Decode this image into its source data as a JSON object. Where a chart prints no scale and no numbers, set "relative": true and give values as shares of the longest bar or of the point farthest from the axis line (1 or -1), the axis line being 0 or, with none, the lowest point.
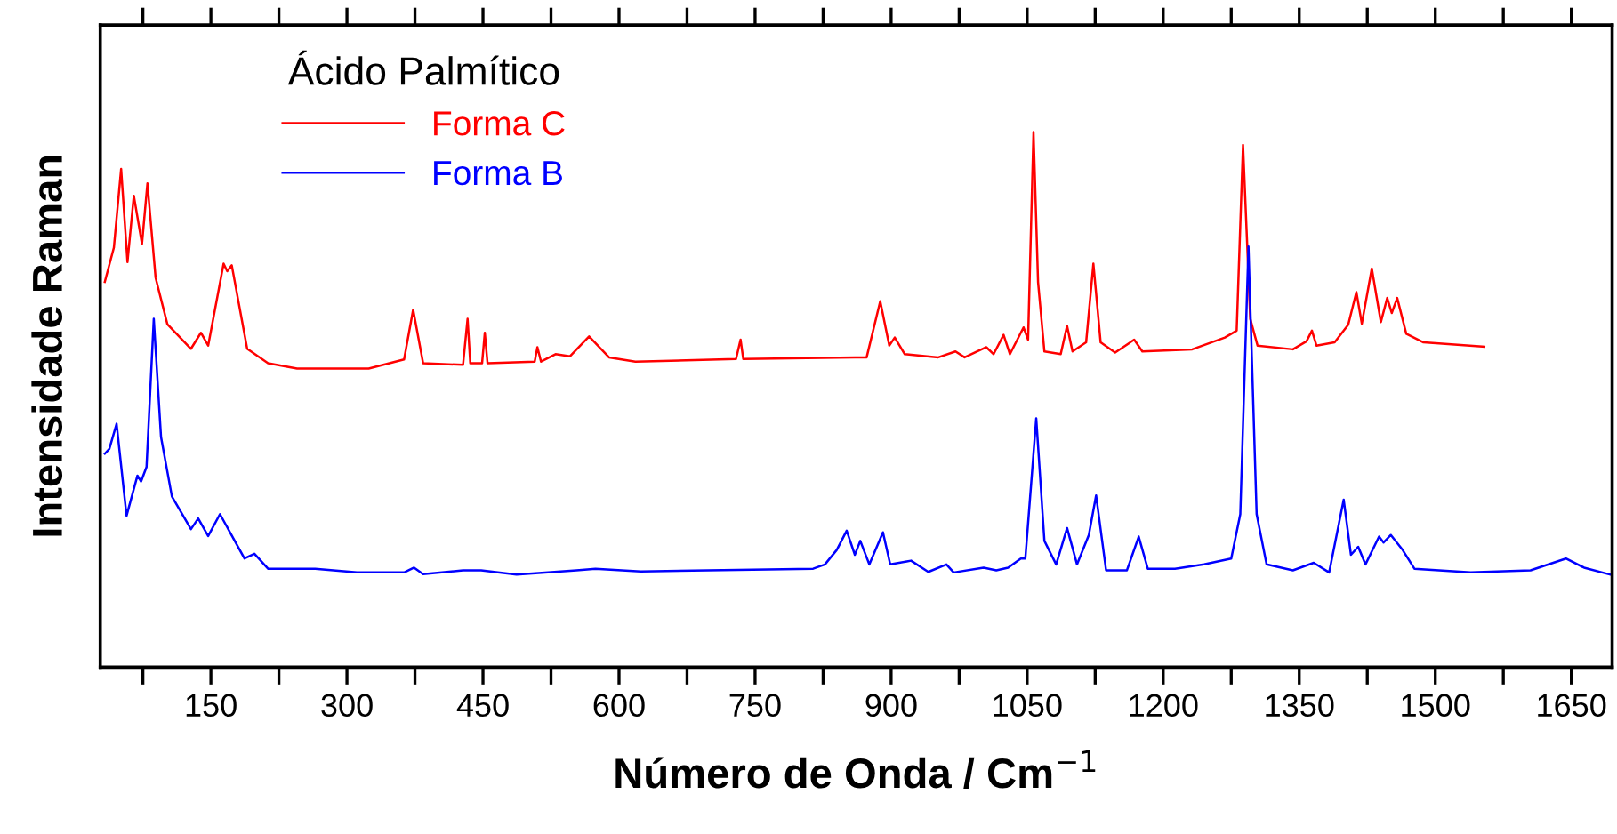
{
  "chart_data": {
    "type": "line",
    "relative": true,
    "legend_title": "Ácido Palmítico",
    "legend": "top left",
    "xlabel": "Número de Onda / Cm$^{−1}$",
    "ylabel": "Intensidade Raman",
    "xlim": [
      28,
      1695
    ],
    "xticks": [
      {
        "value": 75,
        "label": null
      },
      150,
      {
        "value": 225,
        "label": null
      },
      300,
      {
        "value": 375,
        "label": null
      },
      450,
      {
        "value": 525,
        "label": null
      },
      600,
      {
        "value": 675,
        "label": null
      },
      750,
      {
        "value": 825,
        "label": null
      },
      900,
      {
        "value": 975,
        "label": null
      },
      1050,
      {
        "value": 1125,
        "label": null
      },
      1200,
      {
        "value": 1275,
        "label": null
      },
      1350,
      {
        "value": 1425,
        "label": null
      },
      1500,
      {
        "value": 1575,
        "label": null
      },
      1650
    ],
    "grid": false,
    "marker": "none",
    "line_style": "solid",
    "series": [
      {
        "name": "Forma C",
        "color": "#ff0000",
        "x": [
          33,
          43,
          51,
          58,
          65,
          74,
          80,
          89,
          102,
          128,
          139,
          147,
          164,
          168,
          173,
          190,
          213,
          245,
          324,
          363,
          373,
          384,
          428,
          433,
          436,
          449,
          452,
          455,
          507,
          510,
          514,
          530,
          546,
          567,
          589,
          618,
          729,
          734,
          737,
          860,
          873,
          888,
          898,
          904,
          915,
          952,
          971,
          981,
          1005,
          1013,
          1024,
          1031,
          1046,
          1051,
          1057,
          1062,
          1069,
          1087,
          1094,
          1100,
          1115,
          1123,
          1131,
          1147,
          1168,
          1177,
          1232,
          1268,
          1281,
          1288,
          1296,
          1304,
          1343,
          1358,
          1364,
          1369,
          1389,
          1404,
          1413,
          1419,
          1430,
          1440,
          1447,
          1452,
          1458,
          1468,
          1487,
          1554
        ],
        "values": [
          0.72,
          0.784,
          0.931,
          0.757,
          0.881,
          0.791,
          0.904,
          0.728,
          0.641,
          0.595,
          0.625,
          0.601,
          0.754,
          0.74,
          0.751,
          0.595,
          0.568,
          0.558,
          0.558,
          0.575,
          0.668,
          0.568,
          0.565,
          0.651,
          0.568,
          0.568,
          0.625,
          0.568,
          0.571,
          0.598,
          0.571,
          0.585,
          0.581,
          0.618,
          0.579,
          0.571,
          0.576,
          0.612,
          0.576,
          0.579,
          0.579,
          0.684,
          0.601,
          0.616,
          0.585,
          0.579,
          0.59,
          0.579,
          0.598,
          0.585,
          0.621,
          0.585,
          0.635,
          0.612,
          1.0,
          0.72,
          0.59,
          0.585,
          0.638,
          0.59,
          0.607,
          0.754,
          0.607,
          0.588,
          0.612,
          0.59,
          0.594,
          0.616,
          0.629,
          0.976,
          0.651,
          0.601,
          0.594,
          0.609,
          0.629,
          0.601,
          0.607,
          0.64,
          0.701,
          0.642,
          0.745,
          0.645,
          0.69,
          0.662,
          0.69,
          0.623,
          0.607,
          0.599
        ]
      },
      {
        "name": "Forma B",
        "color": "#0000ff",
        "x": [
          33,
          38,
          46,
          57,
          69,
          73,
          79,
          87,
          95,
          107,
          128,
          136,
          147,
          160,
          187,
          198,
          213,
          265,
          311,
          363,
          374,
          384,
          428,
          448,
          487,
          553,
          574,
          624,
          814,
          827,
          840,
          851,
          860,
          866,
          876,
          891,
          899,
          922,
          941,
          961,
          969,
          1002,
          1016,
          1029,
          1043,
          1048,
          1060,
          1069,
          1082,
          1094,
          1105,
          1118,
          1126,
          1137,
          1160,
          1173,
          1183,
          1213,
          1245,
          1275,
          1285,
          1294,
          1303,
          1314,
          1343,
          1366,
          1383,
          1399,
          1407,
          1415,
          1423,
          1438,
          1443,
          1451,
          1464,
          1477,
          1539,
          1605,
          1644,
          1664,
          1693
        ],
        "values": [
          0.399,
          0.408,
          0.455,
          0.283,
          0.358,
          0.347,
          0.374,
          0.651,
          0.43,
          0.319,
          0.258,
          0.278,
          0.245,
          0.286,
          0.203,
          0.212,
          0.184,
          0.184,
          0.177,
          0.177,
          0.186,
          0.174,
          0.181,
          0.181,
          0.173,
          0.181,
          0.184,
          0.179,
          0.184,
          0.192,
          0.219,
          0.255,
          0.21,
          0.236,
          0.192,
          0.252,
          0.192,
          0.199,
          0.178,
          0.192,
          0.177,
          0.186,
          0.181,
          0.186,
          0.203,
          0.203,
          0.465,
          0.236,
          0.192,
          0.26,
          0.192,
          0.247,
          0.321,
          0.181,
          0.181,
          0.244,
          0.184,
          0.184,
          0.192,
          0.203,
          0.286,
          0.786,
          0.286,
          0.192,
          0.181,
          0.195,
          0.177,
          0.313,
          0.21,
          0.225,
          0.192,
          0.244,
          0.233,
          0.247,
          0.219,
          0.184,
          0.177,
          0.181,
          0.203,
          0.186,
          0.173
        ]
      }
    ]
  }
}
